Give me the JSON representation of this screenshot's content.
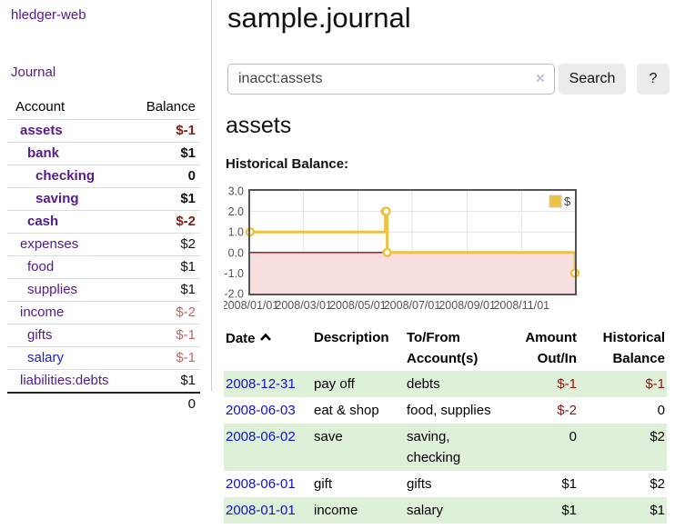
{
  "brand": "hledger-web",
  "sidebar": {
    "journal_link": "Journal",
    "accounts_table": {
      "col_account": "Account",
      "col_balance": "Balance",
      "rows": [
        {
          "name": "assets",
          "balance": "$-1"
        },
        {
          "name": "bank",
          "balance": "$1"
        },
        {
          "name": "checking",
          "balance": "0"
        },
        {
          "name": "saving",
          "balance": "$1"
        },
        {
          "name": "cash",
          "balance": "$-2"
        },
        {
          "name": "expenses",
          "balance": "$2"
        },
        {
          "name": "food",
          "balance": "$1"
        },
        {
          "name": "supplies",
          "balance": "$1"
        },
        {
          "name": "income",
          "balance": "$-2"
        },
        {
          "name": "gifts",
          "balance": "$-1"
        },
        {
          "name": "salary",
          "balance": "$-1"
        },
        {
          "name": "liabilities:debts",
          "balance": "$1"
        }
      ],
      "total": "0"
    }
  },
  "header": {
    "title": "sample.journal"
  },
  "search": {
    "value": "inacct:assets",
    "clear_icon": "✕",
    "button": "Search",
    "help_button": "?"
  },
  "account_page": {
    "heading": "assets",
    "chart_label": "Historical Balance:"
  },
  "chart_data": {
    "type": "line",
    "step": true,
    "title": "Historical Balance:",
    "series": [
      {
        "name": "$",
        "points": [
          [
            "2008-01-01",
            1
          ],
          [
            "2008-06-01",
            2
          ],
          [
            "2008-06-02",
            2
          ],
          [
            "2008-06-03",
            0
          ],
          [
            "2008-12-31",
            -1
          ]
        ]
      }
    ],
    "x_range": [
      "2008-01-01",
      "2008-12-31"
    ],
    "y_range": [
      -2,
      3
    ],
    "x_ticks": [
      "2008/01/01",
      "2008/03/01",
      "2008/05/01",
      "2008/07/01",
      "2008/09/01",
      "2008/11/01"
    ],
    "y_ticks": [
      3,
      2,
      1,
      0,
      -1,
      -2
    ],
    "legend": "$",
    "legend_position": "top-right",
    "grid": true,
    "colors": {
      "line": "#edc240",
      "marker_fill": "#ffffff",
      "negative_region": "#f9dfdf",
      "zero_line": "#9c0b0b",
      "grid": "#e3e3e3",
      "border": "#545454",
      "tick_text": "#545454",
      "legend_text": "#444444"
    }
  },
  "register_table": {
    "headers": {
      "date": "Date",
      "description": "Description",
      "accounts": "To/From Account(s)",
      "amount": "Amount Out/In",
      "balance": "Historical Balance"
    },
    "rows": [
      {
        "date": "2008-12-31",
        "description": "pay off",
        "accounts": "debts",
        "amount": "$-1",
        "balance": "$-1"
      },
      {
        "date": "2008-06-03",
        "description": "eat & shop",
        "accounts": "food, supplies",
        "amount": "$-2",
        "balance": "0"
      },
      {
        "date": "2008-06-02",
        "description": "save",
        "accounts": "saving, checking",
        "amount": "0",
        "balance": "$2"
      },
      {
        "date": "2008-06-01",
        "description": "gift",
        "accounts": "gifts",
        "amount": "$1",
        "balance": "$2"
      },
      {
        "date": "2008-01-01",
        "description": "income",
        "accounts": "salary",
        "amount": "$1",
        "balance": "$1"
      }
    ]
  }
}
